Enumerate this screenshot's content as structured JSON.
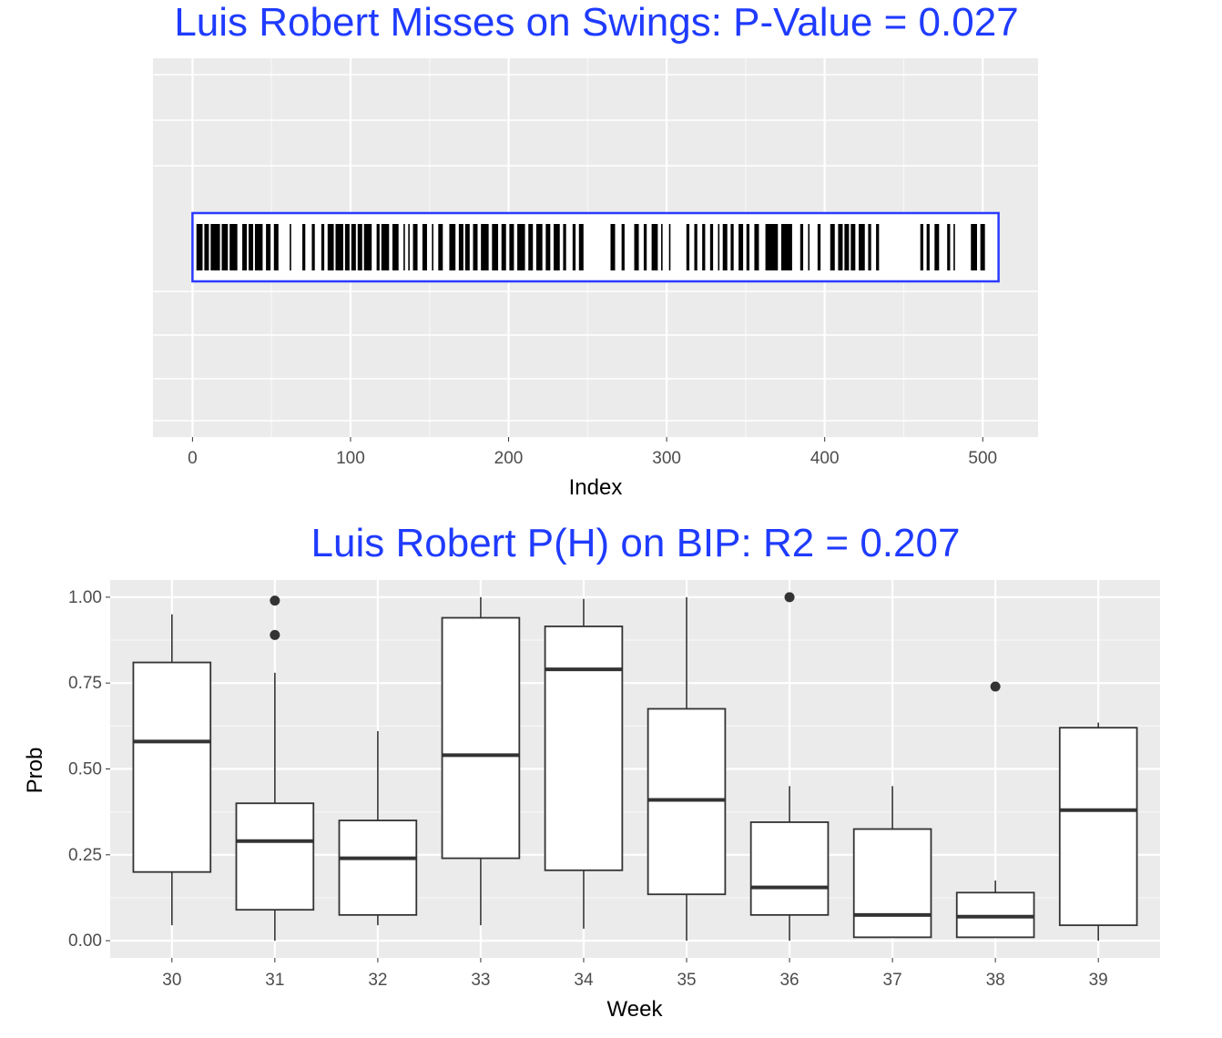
{
  "chart_data": [
    {
      "type": "barcode",
      "title": "Luis Robert Misses on Swings: P-Value = 0.027",
      "xlabel": "Index",
      "ylabel": "",
      "xlim": [
        -25,
        535
      ],
      "xticks": [
        0,
        100,
        200,
        300,
        400,
        500
      ],
      "sequence_length": 510,
      "miss_index_ranges": [
        [
          3,
          6
        ],
        [
          8,
          10
        ],
        [
          12,
          17
        ],
        [
          19,
          22
        ],
        [
          24,
          28
        ],
        [
          32,
          34
        ],
        [
          36,
          38
        ],
        [
          40,
          44
        ],
        [
          47,
          49
        ],
        [
          52,
          54
        ],
        [
          62,
          62
        ],
        [
          70,
          71
        ],
        [
          76,
          77
        ],
        [
          82,
          83
        ],
        [
          86,
          89
        ],
        [
          91,
          95
        ],
        [
          97,
          99
        ],
        [
          101,
          103
        ],
        [
          105,
          107
        ],
        [
          109,
          113
        ],
        [
          117,
          118
        ],
        [
          120,
          124
        ],
        [
          127,
          130
        ],
        [
          134,
          134
        ],
        [
          137,
          137
        ],
        [
          140,
          142
        ],
        [
          146,
          148
        ],
        [
          152,
          152
        ],
        [
          156,
          158
        ],
        [
          163,
          166
        ],
        [
          169,
          171
        ],
        [
          173,
          175
        ],
        [
          178,
          180
        ],
        [
          183,
          187
        ],
        [
          190,
          193
        ],
        [
          196,
          198
        ],
        [
          201,
          203
        ],
        [
          206,
          210
        ],
        [
          213,
          215
        ],
        [
          218,
          221
        ],
        [
          224,
          226
        ],
        [
          229,
          232
        ],
        [
          235,
          236
        ],
        [
          241,
          242
        ],
        [
          245,
          247
        ],
        [
          265,
          267
        ],
        [
          272,
          273
        ],
        [
          280,
          282
        ],
        [
          286,
          287
        ],
        [
          291,
          294
        ],
        [
          297,
          297
        ],
        [
          302,
          302
        ],
        [
          313,
          314
        ],
        [
          318,
          319
        ],
        [
          323,
          324
        ],
        [
          328,
          329
        ],
        [
          333,
          333
        ],
        [
          336,
          338
        ],
        [
          341,
          342
        ],
        [
          346,
          348
        ],
        [
          351,
          352
        ],
        [
          356,
          358
        ],
        [
          363,
          370
        ],
        [
          373,
          379
        ],
        [
          385,
          386
        ],
        [
          390,
          390
        ],
        [
          396,
          397
        ],
        [
          404,
          406
        ],
        [
          409,
          411
        ],
        [
          413,
          415
        ],
        [
          417,
          419
        ],
        [
          422,
          425
        ],
        [
          428,
          429
        ],
        [
          433,
          434
        ],
        [
          461,
          462
        ],
        [
          465,
          466
        ],
        [
          470,
          472
        ],
        [
          478,
          479
        ],
        [
          482,
          482
        ],
        [
          493,
          496
        ],
        [
          499,
          501
        ]
      ]
    },
    {
      "type": "box",
      "title": "Luis Robert P(H) on BIP: R2 = 0.207",
      "xlabel": "Week",
      "ylabel": "Prob",
      "ylim": [
        -0.05,
        1.05
      ],
      "yticks": [
        "0.00",
        "0.25",
        "0.50",
        "0.75",
        "1.00"
      ],
      "categories": [
        "30",
        "31",
        "32",
        "33",
        "34",
        "35",
        "36",
        "37",
        "38",
        "39"
      ],
      "boxes": [
        {
          "week": "30",
          "low": 0.045,
          "q1": 0.2,
          "median": 0.58,
          "q3": 0.81,
          "high": 0.95,
          "outliers": []
        },
        {
          "week": "31",
          "low": 0.0,
          "q1": 0.09,
          "median": 0.29,
          "q3": 0.4,
          "high": 0.78,
          "outliers": [
            0.89,
            0.99
          ]
        },
        {
          "week": "32",
          "low": 0.045,
          "q1": 0.075,
          "median": 0.24,
          "q3": 0.35,
          "high": 0.61,
          "outliers": []
        },
        {
          "week": "33",
          "low": 0.045,
          "q1": 0.24,
          "median": 0.54,
          "q3": 0.94,
          "high": 1.0,
          "outliers": []
        },
        {
          "week": "34",
          "low": 0.035,
          "q1": 0.205,
          "median": 0.79,
          "q3": 0.915,
          "high": 0.995,
          "outliers": []
        },
        {
          "week": "35",
          "low": 0.0,
          "q1": 0.135,
          "median": 0.41,
          "q3": 0.675,
          "high": 1.0,
          "outliers": []
        },
        {
          "week": "36",
          "low": 0.0,
          "q1": 0.075,
          "median": 0.155,
          "q3": 0.345,
          "high": 0.45,
          "outliers": [
            1.0
          ]
        },
        {
          "week": "37",
          "low": 0.01,
          "q1": 0.01,
          "median": 0.075,
          "q3": 0.325,
          "high": 0.45,
          "outliers": []
        },
        {
          "week": "38",
          "low": 0.01,
          "q1": 0.01,
          "median": 0.07,
          "q3": 0.14,
          "high": 0.175,
          "outliers": [
            0.74
          ]
        },
        {
          "week": "39",
          "low": 0.0,
          "q1": 0.045,
          "median": 0.38,
          "q3": 0.62,
          "high": 0.635,
          "outliers": []
        }
      ]
    }
  ]
}
